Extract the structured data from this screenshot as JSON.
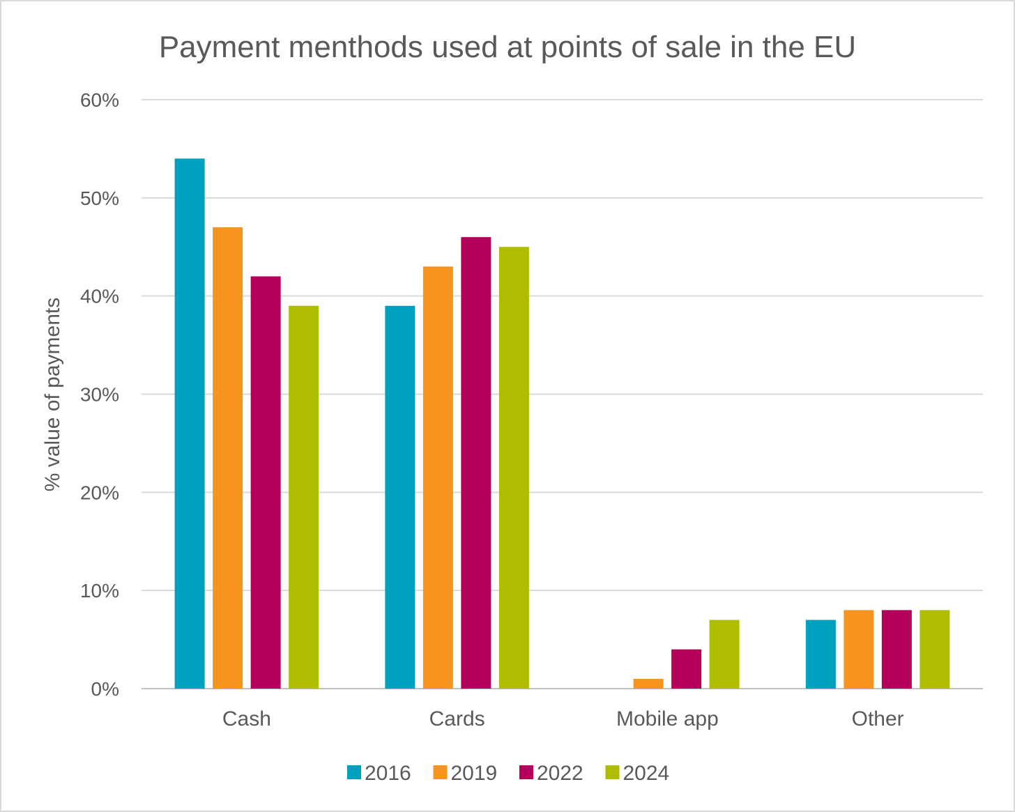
{
  "chart_data": {
    "type": "bar",
    "title": "Payment menthods used at points of sale in the EU",
    "xlabel": "",
    "ylabel": "% value of payments",
    "categories": [
      "Cash",
      "Cards",
      "Mobile app",
      "Other"
    ],
    "series": [
      {
        "name": "2016",
        "color": "#00a0bf",
        "values": [
          54,
          39,
          0,
          7
        ]
      },
      {
        "name": "2019",
        "color": "#f7941d",
        "values": [
          47,
          43,
          1,
          8
        ]
      },
      {
        "name": "2022",
        "color": "#b5005b",
        "values": [
          42,
          46,
          4,
          8
        ]
      },
      {
        "name": "2024",
        "color": "#aebd00",
        "values": [
          39,
          45,
          7,
          8
        ]
      }
    ],
    "ylim": [
      0,
      60
    ],
    "yticks": [
      0,
      10,
      20,
      30,
      40,
      50,
      60
    ],
    "ytick_labels": [
      "0%",
      "10%",
      "20%",
      "30%",
      "40%",
      "50%",
      "60%"
    ],
    "grid": true,
    "legend_position": "bottom"
  }
}
